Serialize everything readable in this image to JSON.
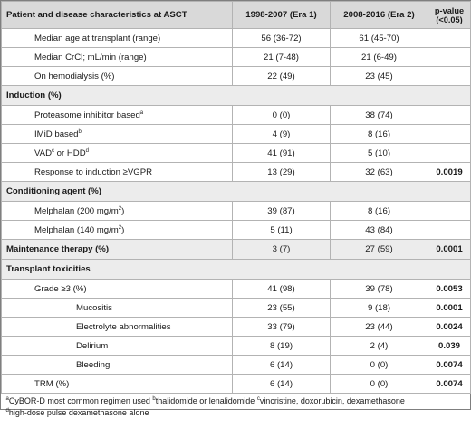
{
  "header": {
    "col1": "Patient and disease characteristics at ASCT",
    "col2": "1998-2007 (Era 1)",
    "col3": "2008-2016 (Era 2)",
    "col4_line1": "p-value",
    "col4_line2": "(<0.05)"
  },
  "rows": {
    "age": {
      "label": "Median age at transplant (range)",
      "era1": "56 (36-72)",
      "era2": "61 (45-70)",
      "p": ""
    },
    "crcl": {
      "label": "Median CrCl; mL/min (range)",
      "era1": "21 (7-48)",
      "era2": "21 (6-49)",
      "p": ""
    },
    "hemo": {
      "label": "On hemodialysis (%)",
      "era1": "22 (49)",
      "era2": "23 (45)",
      "p": ""
    },
    "induction_section": {
      "label": "Induction (%)"
    },
    "pi": {
      "label": "Proteasome inhibitor based",
      "sup": "a",
      "era1": "0 (0)",
      "era2": "38 (74)",
      "p": ""
    },
    "imid": {
      "label": "IMiD based",
      "sup": "b",
      "era1": "4 (9)",
      "era2": "8 (16)",
      "p": ""
    },
    "vad": {
      "label_a": "VAD",
      "sup_a": "c",
      "label_b": " or HDD",
      "sup_b": "d",
      "era1": "41 (91)",
      "era2": "5 (10)",
      "p": ""
    },
    "response": {
      "label": "Response to induction ≥VGPR",
      "era1": "13 (29)",
      "era2": "32 (63)",
      "p": "0.0019"
    },
    "conditioning_section": {
      "label": "Conditioning agent (%)"
    },
    "mel200": {
      "label": "Melphalan (200 mg/m",
      "sup": "2",
      "label_end": ")",
      "era1": "39 (87)",
      "era2": "8 (16)",
      "p": ""
    },
    "mel140": {
      "label": "Melphalan (140 mg/m",
      "sup": "2",
      "label_end": ")",
      "era1": "5 (11)",
      "era2": "43 (84)",
      "p": ""
    },
    "maintenance": {
      "label": "Maintenance therapy (%)",
      "era1": "3 (7)",
      "era2": "27 (59)",
      "p": "0.0001"
    },
    "toxicities_section": {
      "label": "Transplant toxicities"
    },
    "grade3": {
      "label": "Grade ≥3 (%)",
      "era1": "41 (98)",
      "era2": "39 (78)",
      "p": "0.0053"
    },
    "mucositis": {
      "label": "Mucositis",
      "era1": "23 (55)",
      "era2": "9 (18)",
      "p": "0.0001"
    },
    "electrolyte": {
      "label": "Electrolyte abnormalities",
      "era1": "33 (79)",
      "era2": "23 (44)",
      "p": "0.0024"
    },
    "delirium": {
      "label": "Delirium",
      "era1": "8 (19)",
      "era2": "2 (4)",
      "p": "0.039"
    },
    "bleeding": {
      "label": "Bleeding",
      "era1": "6 (14)",
      "era2": "0 (0)",
      "p": "0.0074"
    },
    "trm": {
      "label": "TRM (%)",
      "era1": "6 (14)",
      "era2": "0 (0)",
      "p": "0.0074"
    }
  },
  "footnotes": {
    "a_mark": "a",
    "a_text": "CyBOR-D most common regimen used ",
    "b_mark": "b",
    "b_text": "thalidomide or lenalidomide ",
    "c_mark": "c",
    "c_text": "vincristine, doxorubicin, dexamethasone",
    "d_mark": "d",
    "d_text": "high-dose pulse dexamethasone alone"
  }
}
